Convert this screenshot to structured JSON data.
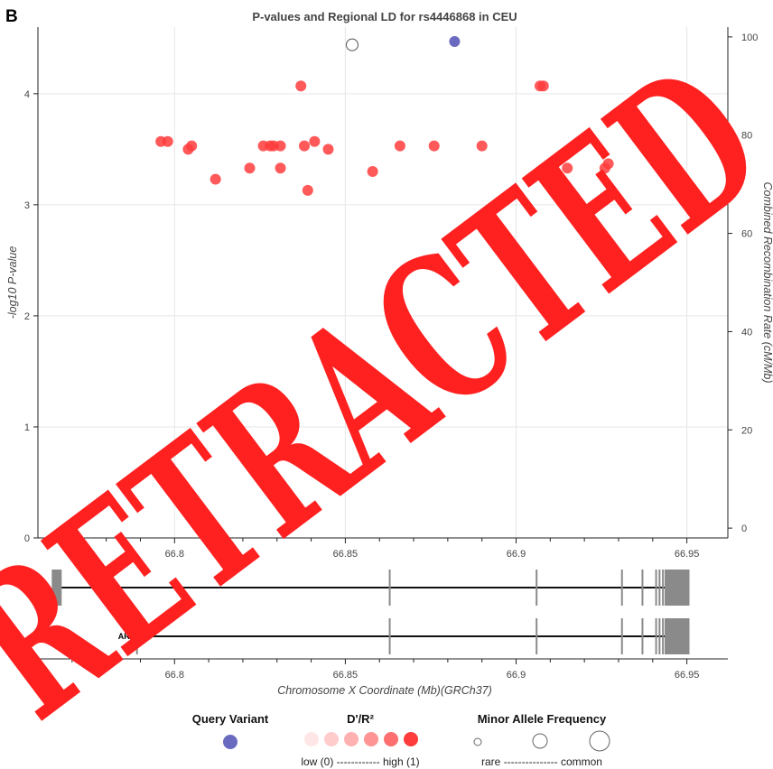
{
  "panel_letter": "B",
  "chart_data": {
    "type": "scatter",
    "title": "P-values and Regional LD for rs4446868 in CEU",
    "xlabel": "Chromosome X Coordinate (Mb)(GRCh37)",
    "ylabel": "-log10 P-value",
    "y2label": "Combined Recombination Rate (cM/Mb)",
    "xlim": [
      66.76,
      66.962
    ],
    "ylim": [
      0,
      4.6
    ],
    "y2lim": [
      -2,
      102
    ],
    "x_ticks": [
      "66.8",
      "66.85",
      "66.9",
      "66.95"
    ],
    "y_ticks": [
      "0",
      "1",
      "2",
      "3",
      "4"
    ],
    "y2_ticks": [
      "0",
      "20",
      "40",
      "60",
      "80",
      "100"
    ],
    "grid": true,
    "query_variant": {
      "x": 66.882,
      "y": 4.47,
      "color": "#6a6ac0"
    },
    "open_points": [
      {
        "x": 66.852,
        "y": 4.44
      }
    ],
    "points": [
      {
        "x": 66.796,
        "y": 3.57
      },
      {
        "x": 66.798,
        "y": 3.57
      },
      {
        "x": 66.804,
        "y": 3.5
      },
      {
        "x": 66.805,
        "y": 3.53
      },
      {
        "x": 66.812,
        "y": 3.23
      },
      {
        "x": 66.822,
        "y": 3.33
      },
      {
        "x": 66.826,
        "y": 3.53
      },
      {
        "x": 66.828,
        "y": 3.53
      },
      {
        "x": 66.829,
        "y": 3.53
      },
      {
        "x": 66.831,
        "y": 3.53
      },
      {
        "x": 66.831,
        "y": 3.33
      },
      {
        "x": 66.837,
        "y": 4.07
      },
      {
        "x": 66.838,
        "y": 3.53
      },
      {
        "x": 66.839,
        "y": 3.13
      },
      {
        "x": 66.841,
        "y": 3.57
      },
      {
        "x": 66.845,
        "y": 3.5
      },
      {
        "x": 66.858,
        "y": 3.3
      },
      {
        "x": 66.866,
        "y": 3.53
      },
      {
        "x": 66.876,
        "y": 3.53
      },
      {
        "x": 66.89,
        "y": 3.53
      },
      {
        "x": 66.907,
        "y": 4.07
      },
      {
        "x": 66.908,
        "y": 4.07
      },
      {
        "x": 66.915,
        "y": 3.33
      },
      {
        "x": 66.926,
        "y": 3.33
      },
      {
        "x": 66.927,
        "y": 3.37
      }
    ],
    "point_color": "#ff3c3c",
    "genes": [
      {
        "name": "AR",
        "start": 66.7645,
        "end": 66.9505,
        "exons": [
          66.7655,
          66.863,
          66.906,
          66.931,
          66.937,
          66.941,
          66.942,
          66.943,
          66.944
        ]
      },
      {
        "name": "AR",
        "start": 66.7885,
        "end": 66.9505,
        "exons": [
          66.789,
          66.863,
          66.906,
          66.931,
          66.937,
          66.941,
          66.942,
          66.943,
          66.944
        ]
      }
    ],
    "legend": {
      "query_title": "Query Variant",
      "ld_title": "D'/R²",
      "ld_caption": "low (0) ------------ high (1)",
      "maf_title": "Minor Allele Frequency",
      "maf_caption": "rare --------------- common",
      "ld_colors": [
        "#ffe6e6",
        "#ffcccc",
        "#ffb0b0",
        "#ff9494",
        "#ff6f6f",
        "#ff3c3c"
      ]
    }
  },
  "watermark": {
    "text": "RETRACTED",
    "color": "#ff2020"
  }
}
